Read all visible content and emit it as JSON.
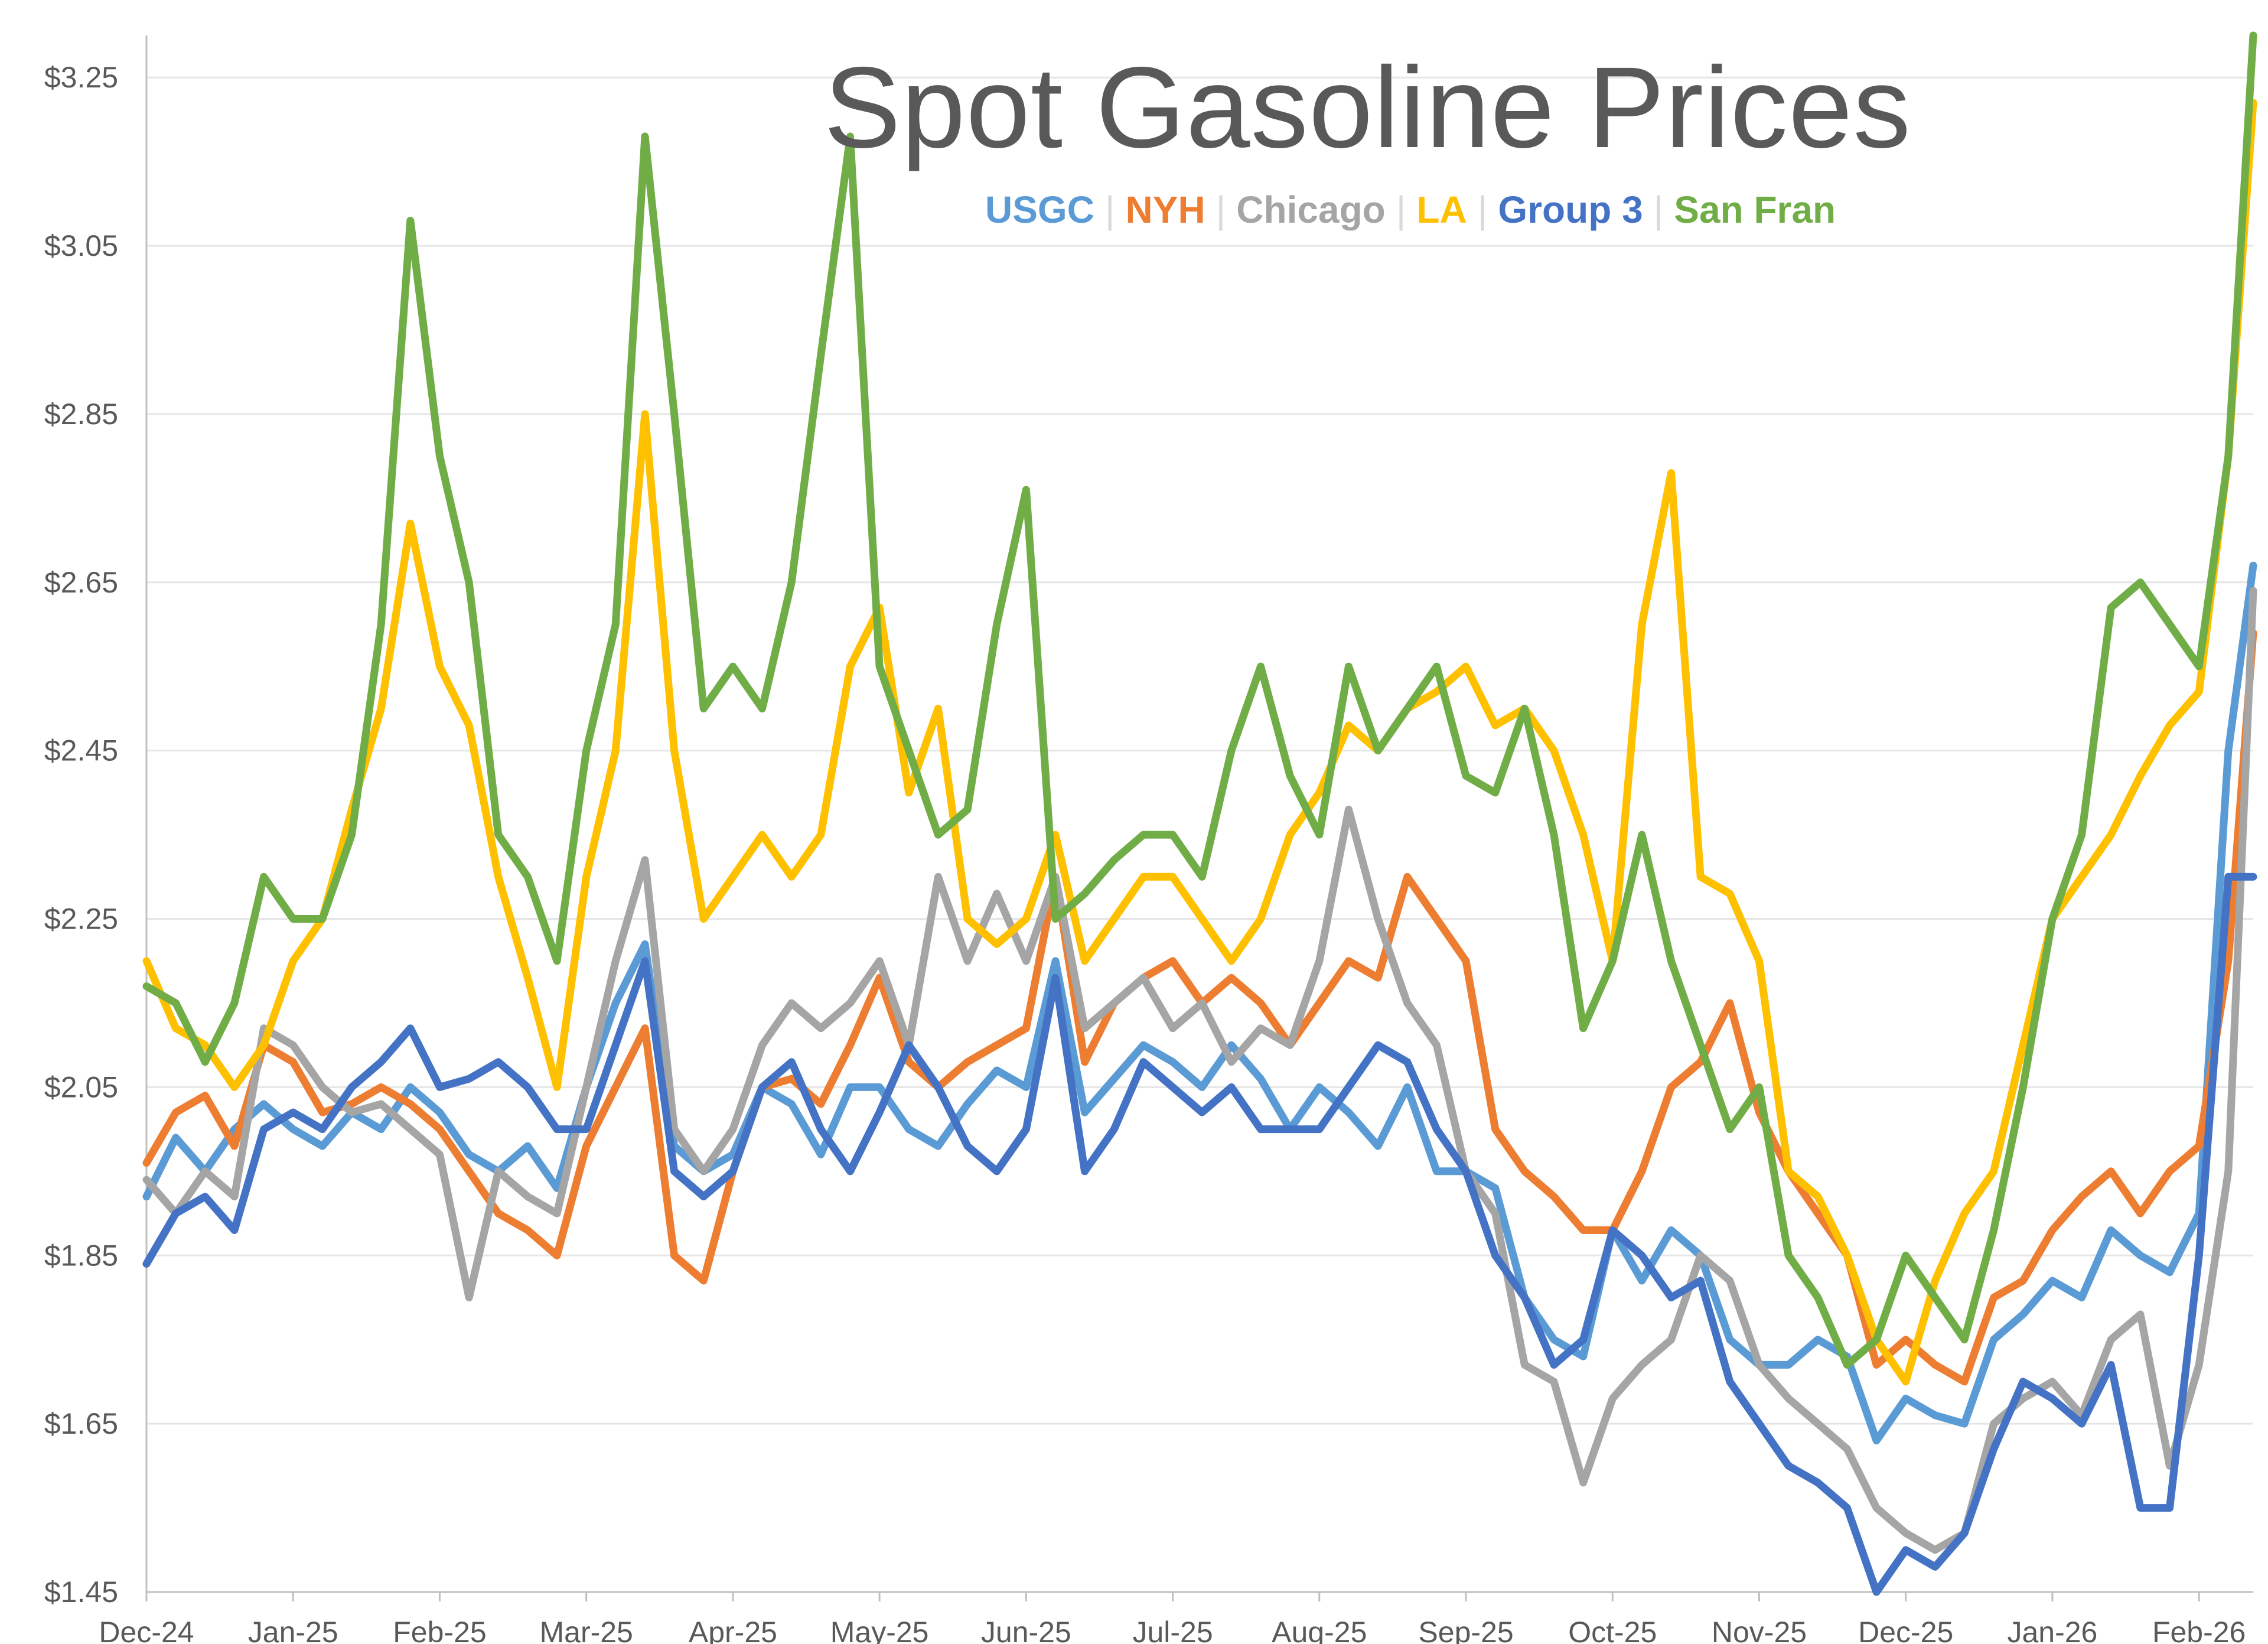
{
  "chart_data": {
    "type": "line",
    "title": "Spot Gasoline Prices",
    "xlabel": "",
    "ylabel": "",
    "ylim": [
      1.45,
      3.3
    ],
    "yticks": [
      "$1.45",
      "$1.65",
      "$1.85",
      "$2.05",
      "$2.25",
      "$2.45",
      "$2.65",
      "$2.85",
      "$3.05",
      "$3.25"
    ],
    "ytick_values": [
      1.45,
      1.65,
      1.85,
      2.05,
      2.25,
      2.45,
      2.65,
      2.85,
      3.05,
      3.25
    ],
    "xticks": [
      "Dec-24",
      "Jan-25",
      "Feb-25",
      "Mar-25",
      "Apr-25",
      "May-25",
      "Jun-25",
      "Jul-25",
      "Aug-25",
      "Sep-25",
      "Oct-25",
      "Nov-25",
      "Dec-25",
      "Jan-26",
      "Feb-26"
    ],
    "x_range": [
      0,
      14.37
    ],
    "grid": "horizontal",
    "legend_placement": "top-center",
    "series": [
      {
        "name": "USGC",
        "color": "#5B9BD5",
        "x": [
          0,
          0.2,
          0.4,
          0.6,
          0.8,
          1.0,
          1.2,
          1.4,
          1.6,
          1.8,
          2.0,
          2.2,
          2.4,
          2.6,
          2.8,
          3.0,
          3.2,
          3.4,
          3.6,
          3.8,
          4.0,
          4.2,
          4.4,
          4.6,
          4.8,
          5.0,
          5.2,
          5.4,
          5.6,
          5.8,
          6.0,
          6.2,
          6.4,
          6.6,
          6.8,
          7.0,
          7.2,
          7.4,
          7.6,
          7.8,
          8.0,
          8.2,
          8.4,
          8.6,
          8.8,
          9.0,
          9.2,
          9.4,
          9.6,
          9.8,
          10.0,
          10.2,
          10.4,
          10.6,
          10.8,
          11.0,
          11.2,
          11.4,
          11.6,
          11.8,
          12.0,
          12.2,
          12.4,
          12.6,
          12.8,
          13.0,
          13.2,
          13.4,
          13.6,
          13.8,
          14.0,
          14.2,
          14.37
        ],
        "values": [
          1.92,
          1.99,
          1.95,
          2.0,
          2.03,
          2.0,
          1.98,
          2.02,
          2.0,
          2.05,
          2.02,
          1.97,
          1.95,
          1.98,
          1.93,
          2.05,
          2.15,
          2.22,
          1.98,
          1.95,
          1.97,
          2.05,
          2.03,
          1.97,
          2.05,
          2.05,
          2.0,
          1.98,
          2.03,
          2.07,
          2.05,
          2.2,
          2.02,
          2.06,
          2.1,
          2.08,
          2.05,
          2.1,
          2.06,
          2.0,
          2.05,
          2.02,
          1.98,
          2.05,
          1.95,
          1.95,
          1.93,
          1.8,
          1.75,
          1.73,
          1.88,
          1.82,
          1.88,
          1.85,
          1.75,
          1.72,
          1.72,
          1.75,
          1.73,
          1.63,
          1.68,
          1.66,
          1.65,
          1.75,
          1.78,
          1.82,
          1.8,
          1.88,
          1.85,
          1.83,
          1.9,
          2.45,
          2.67
        ]
      },
      {
        "name": "NYH",
        "color": "#ED7D31",
        "x": [
          0,
          0.2,
          0.4,
          0.6,
          0.8,
          1.0,
          1.2,
          1.4,
          1.6,
          1.8,
          2.0,
          2.2,
          2.4,
          2.6,
          2.8,
          3.0,
          3.2,
          3.4,
          3.6,
          3.8,
          4.0,
          4.2,
          4.4,
          4.6,
          4.8,
          5.0,
          5.2,
          5.4,
          5.6,
          5.8,
          6.0,
          6.2,
          6.4,
          6.6,
          6.8,
          7.0,
          7.2,
          7.4,
          7.6,
          7.8,
          8.0,
          8.2,
          8.4,
          8.6,
          8.8,
          9.0,
          9.2,
          9.4,
          9.6,
          9.8,
          10.0,
          10.2,
          10.4,
          10.6,
          10.8,
          11.0,
          11.2,
          11.4,
          11.6,
          11.8,
          12.0,
          12.2,
          12.4,
          12.6,
          12.8,
          13.0,
          13.2,
          13.4,
          13.6,
          13.8,
          14.0,
          14.2,
          14.37
        ],
        "values": [
          1.96,
          2.02,
          2.04,
          1.98,
          2.1,
          2.08,
          2.02,
          2.03,
          2.05,
          2.03,
          2.0,
          1.95,
          1.9,
          1.88,
          1.85,
          1.98,
          2.05,
          2.12,
          1.85,
          1.82,
          1.95,
          2.05,
          2.06,
          2.03,
          2.1,
          2.18,
          2.08,
          2.05,
          2.08,
          2.1,
          2.12,
          2.3,
          2.08,
          2.15,
          2.18,
          2.2,
          2.15,
          2.18,
          2.15,
          2.1,
          2.15,
          2.2,
          2.18,
          2.3,
          2.25,
          2.2,
          2.0,
          1.95,
          1.92,
          1.88,
          1.88,
          1.95,
          2.05,
          2.08,
          2.15,
          2.02,
          1.95,
          1.9,
          1.85,
          1.72,
          1.75,
          1.72,
          1.7,
          1.8,
          1.82,
          1.88,
          1.92,
          1.95,
          1.9,
          1.95,
          1.98,
          2.2,
          2.59
        ]
      },
      {
        "name": "Chicago",
        "color": "#A5A5A5",
        "x": [
          0,
          0.2,
          0.4,
          0.6,
          0.8,
          1.0,
          1.2,
          1.4,
          1.6,
          1.8,
          2.0,
          2.2,
          2.4,
          2.6,
          2.8,
          3.0,
          3.2,
          3.4,
          3.6,
          3.8,
          4.0,
          4.2,
          4.4,
          4.6,
          4.8,
          5.0,
          5.2,
          5.4,
          5.6,
          5.8,
          6.0,
          6.2,
          6.4,
          6.6,
          6.8,
          7.0,
          7.2,
          7.4,
          7.6,
          7.8,
          8.0,
          8.2,
          8.4,
          8.6,
          8.8,
          9.0,
          9.2,
          9.4,
          9.6,
          9.8,
          10.0,
          10.2,
          10.4,
          10.6,
          10.8,
          11.0,
          11.2,
          11.4,
          11.6,
          11.8,
          12.0,
          12.2,
          12.4,
          12.6,
          12.8,
          13.0,
          13.2,
          13.4,
          13.6,
          13.8,
          14.0,
          14.2,
          14.37
        ],
        "values": [
          1.94,
          1.9,
          1.95,
          1.92,
          2.12,
          2.1,
          2.05,
          2.02,
          2.03,
          2.0,
          1.97,
          1.8,
          1.95,
          1.92,
          1.9,
          2.05,
          2.2,
          2.32,
          2.0,
          1.95,
          2.0,
          2.1,
          2.15,
          2.12,
          2.15,
          2.2,
          2.1,
          2.3,
          2.2,
          2.28,
          2.2,
          2.3,
          2.12,
          2.15,
          2.18,
          2.12,
          2.15,
          2.08,
          2.12,
          2.1,
          2.2,
          2.38,
          2.25,
          2.15,
          2.1,
          1.95,
          1.9,
          1.72,
          1.7,
          1.58,
          1.68,
          1.72,
          1.75,
          1.85,
          1.82,
          1.72,
          1.68,
          1.65,
          1.62,
          1.55,
          1.52,
          1.5,
          1.52,
          1.65,
          1.68,
          1.7,
          1.66,
          1.75,
          1.78,
          1.6,
          1.72,
          1.95,
          2.64
        ]
      },
      {
        "name": "LA",
        "color": "#FFC000",
        "x": [
          0,
          0.2,
          0.4,
          0.6,
          0.8,
          1.0,
          1.2,
          1.4,
          1.6,
          1.8,
          2.0,
          2.2,
          2.4,
          2.6,
          2.8,
          3.0,
          3.2,
          3.4,
          3.6,
          3.8,
          4.0,
          4.2,
          4.4,
          4.6,
          4.8,
          5.0,
          5.2,
          5.4,
          5.6,
          5.8,
          6.0,
          6.2,
          6.4,
          6.6,
          6.8,
          7.0,
          7.2,
          7.4,
          7.6,
          7.8,
          8.0,
          8.2,
          8.4,
          8.6,
          8.8,
          9.0,
          9.2,
          9.4,
          9.6,
          9.8,
          10.0,
          10.2,
          10.4,
          10.6,
          10.8,
          11.0,
          11.2,
          11.4,
          11.6,
          11.8,
          12.0,
          12.2,
          12.4,
          12.6,
          12.8,
          13.0,
          13.2,
          13.4,
          13.6,
          13.8,
          14.0,
          14.2,
          14.37
        ],
        "values": [
          2.2,
          2.12,
          2.1,
          2.05,
          2.1,
          2.2,
          2.25,
          2.38,
          2.5,
          2.72,
          2.55,
          2.48,
          2.3,
          2.18,
          2.05,
          2.3,
          2.45,
          2.85,
          2.45,
          2.25,
          2.3,
          2.35,
          2.3,
          2.35,
          2.55,
          2.62,
          2.4,
          2.5,
          2.25,
          2.22,
          2.25,
          2.35,
          2.2,
          2.25,
          2.3,
          2.3,
          2.25,
          2.2,
          2.25,
          2.35,
          2.4,
          2.48,
          2.45,
          2.5,
          2.52,
          2.55,
          2.48,
          2.5,
          2.45,
          2.35,
          2.2,
          2.6,
          2.78,
          2.3,
          2.28,
          2.2,
          1.95,
          1.92,
          1.85,
          1.75,
          1.7,
          1.82,
          1.9,
          1.95,
          2.1,
          2.25,
          2.3,
          2.35,
          2.42,
          2.48,
          2.52,
          2.8,
          3.22
        ]
      },
      {
        "name": "Group 3",
        "color": "#4472C4",
        "x": [
          0,
          0.2,
          0.4,
          0.6,
          0.8,
          1.0,
          1.2,
          1.4,
          1.6,
          1.8,
          2.0,
          2.2,
          2.4,
          2.6,
          2.8,
          3.0,
          3.2,
          3.4,
          3.6,
          3.8,
          4.0,
          4.2,
          4.4,
          4.6,
          4.8,
          5.0,
          5.2,
          5.4,
          5.6,
          5.8,
          6.0,
          6.2,
          6.4,
          6.6,
          6.8,
          7.0,
          7.2,
          7.4,
          7.6,
          7.8,
          8.0,
          8.2,
          8.4,
          8.6,
          8.8,
          9.0,
          9.2,
          9.4,
          9.6,
          9.8,
          10.0,
          10.2,
          10.4,
          10.6,
          10.8,
          11.0,
          11.2,
          11.4,
          11.6,
          11.8,
          12.0,
          12.2,
          12.4,
          12.6,
          12.8,
          13.0,
          13.2,
          13.4,
          13.6,
          13.8,
          14.0,
          14.2,
          14.37
        ],
        "values": [
          1.84,
          1.9,
          1.92,
          1.88,
          2.0,
          2.02,
          2.0,
          2.05,
          2.08,
          2.12,
          2.05,
          2.06,
          2.08,
          2.05,
          2.0,
          2.0,
          2.1,
          2.2,
          1.95,
          1.92,
          1.95,
          2.05,
          2.08,
          2.0,
          1.95,
          2.02,
          2.1,
          2.05,
          1.98,
          1.95,
          2.0,
          2.18,
          1.95,
          2.0,
          2.08,
          2.05,
          2.02,
          2.05,
          2.0,
          2.0,
          2.0,
          2.05,
          2.1,
          2.08,
          2.0,
          1.95,
          1.85,
          1.8,
          1.72,
          1.75,
          1.88,
          1.85,
          1.8,
          1.82,
          1.7,
          1.65,
          1.6,
          1.58,
          1.55,
          1.45,
          1.5,
          1.48,
          1.52,
          1.62,
          1.7,
          1.68,
          1.65,
          1.72,
          1.55,
          1.55,
          1.85,
          2.3,
          2.3
        ]
      },
      {
        "name": "San Fran",
        "color": "#70AD47",
        "x": [
          0,
          0.2,
          0.4,
          0.6,
          0.8,
          1.0,
          1.2,
          1.4,
          1.6,
          1.8,
          2.0,
          2.2,
          2.4,
          2.6,
          2.8,
          3.0,
          3.2,
          3.4,
          3.6,
          3.8,
          4.0,
          4.2,
          4.4,
          4.6,
          4.8,
          5.0,
          5.2,
          5.4,
          5.6,
          5.8,
          6.0,
          6.2,
          6.4,
          6.6,
          6.8,
          7.0,
          7.2,
          7.4,
          7.6,
          7.8,
          8.0,
          8.2,
          8.4,
          8.6,
          8.8,
          9.0,
          9.2,
          9.4,
          9.6,
          9.8,
          10.0,
          10.2,
          10.4,
          10.6,
          10.8,
          11.0,
          11.2,
          11.4,
          11.6,
          11.8,
          12.0,
          12.2,
          12.4,
          12.6,
          12.8,
          13.0,
          13.2,
          13.4,
          13.6,
          13.8,
          14.0,
          14.2,
          14.37
        ],
        "values": [
          2.17,
          2.15,
          2.08,
          2.15,
          2.3,
          2.25,
          2.25,
          2.35,
          2.6,
          3.08,
          2.8,
          2.65,
          2.35,
          2.3,
          2.2,
          2.45,
          2.6,
          3.18,
          2.85,
          2.5,
          2.55,
          2.5,
          2.65,
          2.92,
          3.18,
          2.55,
          2.45,
          2.35,
          2.38,
          2.6,
          2.76,
          2.25,
          2.28,
          2.32,
          2.35,
          2.35,
          2.3,
          2.45,
          2.55,
          2.42,
          2.35,
          2.55,
          2.45,
          2.5,
          2.55,
          2.42,
          2.4,
          2.5,
          2.35,
          2.12,
          2.2,
          2.35,
          2.2,
          2.1,
          2.0,
          2.05,
          1.85,
          1.8,
          1.72,
          1.75,
          1.85,
          1.8,
          1.75,
          1.88,
          2.05,
          2.25,
          2.35,
          2.62,
          2.65,
          2.6,
          2.55,
          2.8,
          3.3
        ]
      }
    ]
  }
}
